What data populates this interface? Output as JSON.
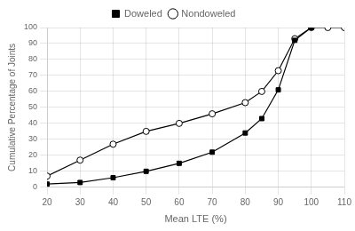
{
  "chart_data": {
    "type": "line",
    "xlabel": "Mean LTE (%)",
    "ylabel": "Cumulative Percentage of Joints",
    "series": [
      {
        "name": "Doweled",
        "color": "black",
        "marker": "square",
        "x": [
          20,
          30,
          40,
          50,
          60,
          70,
          80,
          85,
          90,
          95,
          100
        ],
        "values": [
          2,
          3,
          6,
          10,
          15,
          22,
          34,
          43,
          61,
          92,
          100
        ]
      },
      {
        "name": "Nondoweled",
        "color": "black",
        "marker": "open_circle",
        "x": [
          20,
          30,
          40,
          50,
          60,
          70,
          80,
          85,
          90,
          95,
          100,
          105,
          110
        ],
        "values": [
          7,
          17,
          27,
          35,
          40,
          46,
          53,
          60,
          73,
          93,
          100,
          100,
          100
        ]
      }
    ],
    "xlim": [
      20,
      110
    ],
    "ylim": [
      0,
      100
    ],
    "xticks": [
      20,
      30,
      40,
      50,
      60,
      70,
      80,
      90,
      100,
      110
    ],
    "yticks": [
      0,
      10,
      20,
      30,
      40,
      50,
      60,
      70,
      80,
      90,
      100
    ],
    "grid": true,
    "legend": "top"
  }
}
